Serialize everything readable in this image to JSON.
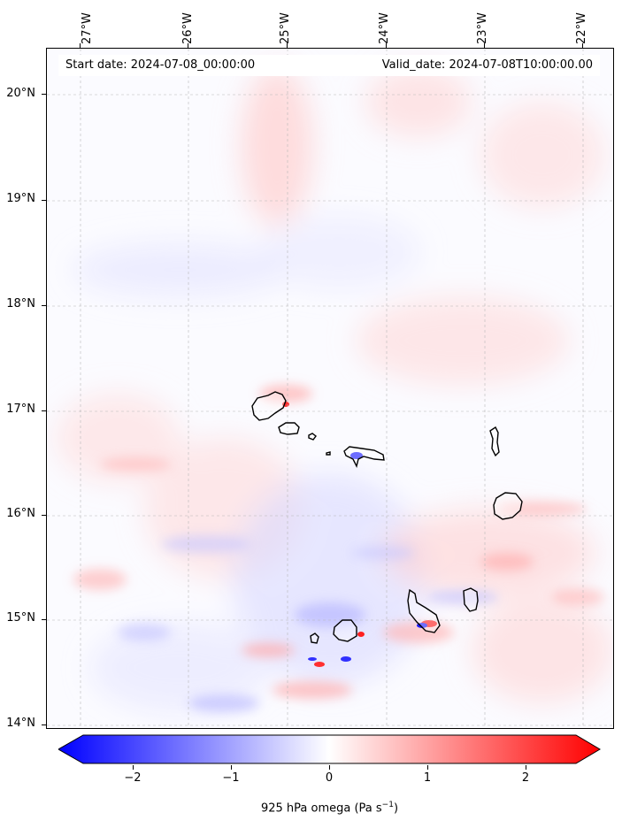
{
  "map": {
    "start_date": "Start date: 2024-07-08_00:00:00",
    "valid_date": "Valid_date: 2024-07-08T10:00:00.00",
    "lat_labels": [
      "20°N",
      "19°N",
      "18°N",
      "17°N",
      "16°N",
      "15°N",
      "14°N"
    ],
    "lon_labels": [
      "27°W",
      "26°W",
      "25°W",
      "24°W",
      "23°W",
      "22°W"
    ],
    "extent": {
      "lon_min": -27.3,
      "lon_max": -21.7,
      "lat_min": 13.95,
      "lat_max": 20.4
    },
    "islands": [
      "Santo Antão",
      "São Vicente",
      "Santa Luzia",
      "São Nicolau",
      "Sal",
      "Boa Vista",
      "Maio",
      "Santiago",
      "Fogo",
      "Brava"
    ]
  },
  "colorbar": {
    "title": "925 hPa omega (Pa s",
    "title_sup": "−1",
    "title_end": ")",
    "tick_labels": [
      "−2",
      "−1",
      "0",
      "1",
      "2"
    ],
    "tick_values": [
      -2,
      -1,
      0,
      1,
      2
    ],
    "min": -2.5,
    "max": 2.5,
    "colors": {
      "low": "#0000ff",
      "mid": "#ffffff",
      "high": "#ff0000"
    }
  }
}
